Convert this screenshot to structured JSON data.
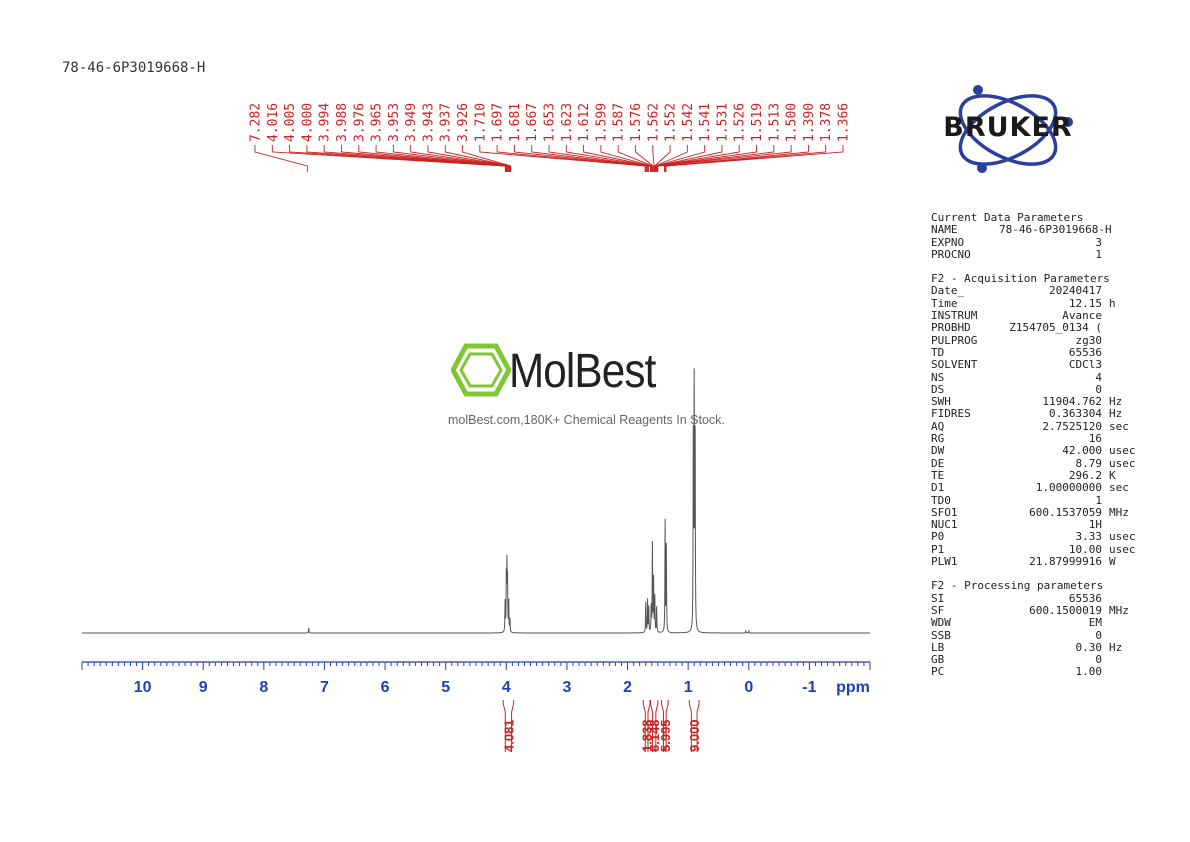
{
  "sample_id": "78-46-6P3019668-H",
  "logo": {
    "text": "BRUKER",
    "color": "#2b3f9c"
  },
  "watermark": {
    "brand": "MolBest",
    "caption": "molBest.com,180K+ Chemical Reagents In Stock.",
    "icon": "benzene-ring-icon",
    "icon_color": "#7ec832"
  },
  "colors": {
    "peak_labels": "#cc2222",
    "axis": "#1f3fbf",
    "spectrum": "#555555"
  },
  "chart_data": {
    "type": "line",
    "xlabel": "ppm",
    "x_range": [
      11.0,
      -2.0
    ],
    "x_reversed": true,
    "x_ticks": [
      10,
      9,
      8,
      7,
      6,
      5,
      4,
      3,
      2,
      1,
      0,
      -1
    ],
    "x_tick_labels": [
      "10",
      "9",
      "8",
      "7",
      "6",
      "5",
      "4",
      "3",
      "2",
      "1",
      "0",
      "-1"
    ],
    "grid": false,
    "peak_labels": [
      "7.282",
      "4.016",
      "4.005",
      "4.000",
      "3.994",
      "3.988",
      "3.976",
      "3.965",
      "3.953",
      "3.949",
      "3.943",
      "3.937",
      "3.926",
      "1.710",
      "1.697",
      "1.681",
      "1.667",
      "1.653",
      "1.623",
      "1.612",
      "1.599",
      "1.587",
      "1.576",
      "1.562",
      "1.552",
      "1.542",
      "1.541",
      "1.531",
      "1.526",
      "1.519",
      "1.513",
      "1.500",
      "1.390",
      "1.378",
      "1.366"
    ],
    "integrals": [
      {
        "label": "4.081",
        "from": 4.05,
        "to": 3.88
      },
      {
        "label": "1.838",
        "from": 1.74,
        "to": 1.63
      },
      {
        "label": "6.148",
        "from": 1.62,
        "to": 1.5
      },
      {
        "label": "5.995",
        "from": 1.44,
        "to": 1.33
      },
      {
        "label": "9.000",
        "from": 0.98,
        "to": 0.82
      }
    ],
    "peaks": [
      {
        "ppm": 7.26,
        "height": 0.02
      },
      {
        "ppm": 4.02,
        "height": 0.12
      },
      {
        "ppm": 4.0,
        "height": 0.21
      },
      {
        "ppm": 3.99,
        "height": 0.25
      },
      {
        "ppm": 3.98,
        "height": 0.2
      },
      {
        "ppm": 3.96,
        "height": 0.12
      },
      {
        "ppm": 3.94,
        "height": 0.05
      },
      {
        "ppm": 1.7,
        "height": 0.12
      },
      {
        "ppm": 1.67,
        "height": 0.13
      },
      {
        "ppm": 1.65,
        "height": 0.1
      },
      {
        "ppm": 1.61,
        "height": 0.1
      },
      {
        "ppm": 1.59,
        "height": 0.35
      },
      {
        "ppm": 1.57,
        "height": 0.21
      },
      {
        "ppm": 1.55,
        "height": 0.14
      },
      {
        "ppm": 1.52,
        "height": 0.1
      },
      {
        "ppm": 1.38,
        "height": 0.44
      },
      {
        "ppm": 1.36,
        "height": 0.34
      },
      {
        "ppm": 0.915,
        "height": 0.78
      },
      {
        "ppm": 0.9,
        "height": 1.0
      },
      {
        "ppm": 0.885,
        "height": 0.78
      },
      {
        "ppm": 0.05,
        "height": 0.008
      },
      {
        "ppm": 0.0,
        "height": 0.01
      }
    ]
  },
  "params": {
    "current": {
      "title": "Current Data Parameters",
      "rows": [
        {
          "key": "NAME",
          "value": "78-46-6P3019668-H",
          "unit": ""
        },
        {
          "key": "EXPNO",
          "value": "3",
          "unit": ""
        },
        {
          "key": "PROCNO",
          "value": "1",
          "unit": ""
        }
      ]
    },
    "acquisition": {
      "title": "F2 - Acquisition Parameters",
      "rows": [
        {
          "key": "Date_",
          "value": "20240417",
          "unit": ""
        },
        {
          "key": "Time",
          "value": "12.15",
          "unit": "h"
        },
        {
          "key": "INSTRUM",
          "value": "Avance",
          "unit": ""
        },
        {
          "key": "PROBHD",
          "value": "Z154705_0134 (",
          "unit": ""
        },
        {
          "key": "PULPROG",
          "value": "zg30",
          "unit": ""
        },
        {
          "key": "TD",
          "value": "65536",
          "unit": ""
        },
        {
          "key": "SOLVENT",
          "value": "CDCl3",
          "unit": ""
        },
        {
          "key": "NS",
          "value": "4",
          "unit": ""
        },
        {
          "key": "DS",
          "value": "0",
          "unit": ""
        },
        {
          "key": "SWH",
          "value": "11904.762",
          "unit": "Hz"
        },
        {
          "key": "FIDRES",
          "value": "0.363304",
          "unit": "Hz"
        },
        {
          "key": "AQ",
          "value": "2.7525120",
          "unit": "sec"
        },
        {
          "key": "RG",
          "value": "16",
          "unit": ""
        },
        {
          "key": "DW",
          "value": "42.000",
          "unit": "usec"
        },
        {
          "key": "DE",
          "value": "8.79",
          "unit": "usec"
        },
        {
          "key": "TE",
          "value": "296.2",
          "unit": "K"
        },
        {
          "key": "D1",
          "value": "1.00000000",
          "unit": "sec"
        },
        {
          "key": "TD0",
          "value": "1",
          "unit": ""
        },
        {
          "key": "SFO1",
          "value": "600.1537059",
          "unit": "MHz"
        },
        {
          "key": "NUC1",
          "value": "1H",
          "unit": ""
        },
        {
          "key": "P0",
          "value": "3.33",
          "unit": "usec"
        },
        {
          "key": "P1",
          "value": "10.00",
          "unit": "usec"
        },
        {
          "key": "PLW1",
          "value": "21.87999916",
          "unit": "W"
        }
      ]
    },
    "processing": {
      "title": "F2 - Processing parameters",
      "rows": [
        {
          "key": "SI",
          "value": "65536",
          "unit": ""
        },
        {
          "key": "SF",
          "value": "600.1500019",
          "unit": "MHz"
        },
        {
          "key": "WDW",
          "value": "EM",
          "unit": ""
        },
        {
          "key": "SSB",
          "value": "0",
          "unit": ""
        },
        {
          "key": "LB",
          "value": "0.30",
          "unit": "Hz"
        },
        {
          "key": "GB",
          "value": "0",
          "unit": ""
        },
        {
          "key": "PC",
          "value": "1.00",
          "unit": ""
        }
      ]
    }
  }
}
